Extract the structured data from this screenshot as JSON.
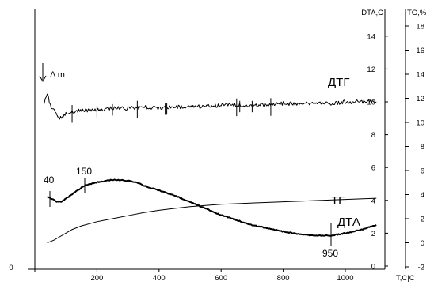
{
  "chart_data": {
    "type": "line",
    "xlabel": "T,C|C",
    "x_ticks": [
      "0",
      "200",
      "400",
      "600",
      "800",
      "1000"
    ],
    "left_origin_label": "0",
    "xlim": [
      0,
      1120
    ],
    "y_axes": [
      {
        "label": "DTA,C",
        "ticks": [
          "0",
          "2",
          "4",
          "6",
          "8",
          "10",
          "12",
          "14"
        ],
        "range": [
          0,
          16
        ]
      },
      {
        "label": "TG,%",
        "ticks": [
          "-2",
          "0",
          "2",
          "4",
          "6",
          "8",
          "10",
          "12",
          "14",
          "16",
          "18"
        ],
        "range": [
          -2,
          19.5
        ]
      }
    ],
    "series": [
      {
        "name": "ДТГ",
        "axis": "DTA,C",
        "x": [
          30,
          40,
          50,
          60,
          80,
          100,
          120,
          160,
          200,
          250,
          300,
          350,
          400,
          450,
          500,
          550,
          600,
          650,
          700,
          750,
          800,
          850,
          900,
          950,
          1000,
          1050,
          1100
        ],
        "y": [
          10.0,
          10.5,
          9.8,
          9.5,
          9.0,
          9.3,
          9.4,
          9.5,
          9.5,
          9.6,
          9.6,
          9.7,
          9.6,
          9.7,
          9.7,
          9.7,
          9.8,
          9.8,
          9.8,
          9.8,
          9.9,
          9.9,
          9.9,
          9.9,
          10.0,
          10.0,
          10.0
        ]
      },
      {
        "name": "ТГ",
        "axis": "TG,%",
        "x": [
          40,
          60,
          80,
          100,
          120,
          150,
          200,
          250,
          300,
          350,
          400,
          450,
          500,
          550,
          600,
          650,
          700,
          750,
          800,
          850,
          900,
          950,
          1000,
          1050,
          1100
        ],
        "y": [
          0.0,
          0.2,
          0.5,
          0.8,
          1.1,
          1.4,
          1.75,
          2.0,
          2.25,
          2.5,
          2.7,
          2.85,
          3.0,
          3.1,
          3.2,
          3.25,
          3.3,
          3.35,
          3.4,
          3.45,
          3.5,
          3.55,
          3.6,
          3.65,
          3.7
        ]
      },
      {
        "name": "ДТА",
        "axis": "DTA,C",
        "x": [
          40,
          55,
          70,
          85,
          100,
          130,
          160,
          200,
          250,
          300,
          330,
          350,
          400,
          450,
          500,
          550,
          600,
          650,
          700,
          750,
          800,
          850,
          900,
          950,
          1000,
          1050,
          1100
        ],
        "y": [
          4.2,
          4.1,
          3.9,
          3.9,
          4.1,
          4.5,
          4.9,
          5.1,
          5.25,
          5.2,
          5.1,
          4.9,
          4.6,
          4.3,
          3.9,
          3.5,
          3.1,
          2.8,
          2.5,
          2.3,
          2.1,
          1.95,
          1.85,
          1.85,
          2.0,
          2.2,
          2.5
        ]
      }
    ],
    "annotations": [
      {
        "text": "Δ m",
        "x": 40,
        "y": 11.5
      },
      {
        "text": "40",
        "x": 40,
        "y": 4.1
      },
      {
        "text": "150",
        "x": 150,
        "y": 4.9
      },
      {
        "text": "950",
        "x": 950,
        "y": 1.85
      }
    ],
    "grid": false,
    "legend": "none"
  }
}
